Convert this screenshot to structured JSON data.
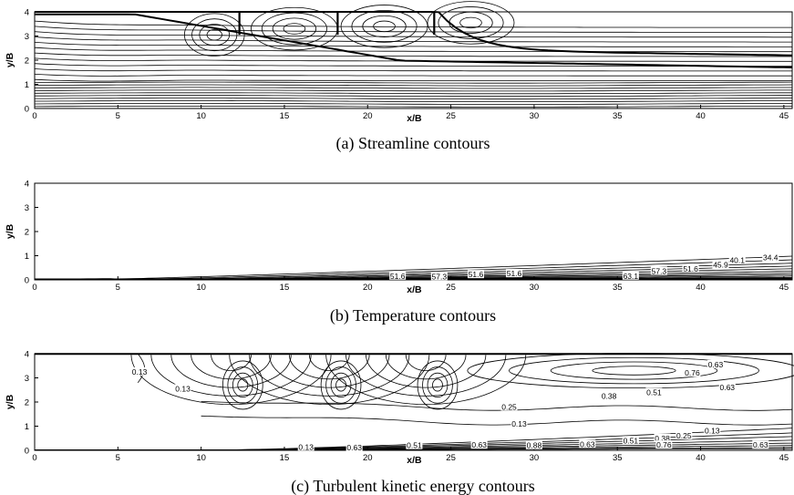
{
  "chart_data": [
    {
      "type": "contour",
      "caption": "(a)  Streamline contours",
      "xlabel": "x/B",
      "ylabel": "y/B",
      "xlim": [
        0,
        45.5
      ],
      "ylim": [
        0,
        4
      ],
      "xticks": [
        0,
        5,
        10,
        15,
        20,
        25,
        30,
        35,
        40,
        45
      ],
      "yticks": [
        0,
        1,
        2,
        3,
        4
      ],
      "grid": false,
      "contour_labels": [],
      "vortex_centers": [
        {
          "x": 10.8,
          "y": 3.05
        },
        {
          "x": 15.6,
          "y": 3.3
        },
        {
          "x": 21.0,
          "y": 3.4
        },
        {
          "x": 26.2,
          "y": 3.55
        }
      ],
      "vertical_walls_x": [
        12.3,
        18.2,
        24.0
      ]
    },
    {
      "type": "contour",
      "caption": "(b)  Temperature contours",
      "xlabel": "x/B",
      "ylabel": "y/B",
      "xlim": [
        0,
        45.5
      ],
      "ylim": [
        0,
        4
      ],
      "xticks": [
        0,
        5,
        10,
        15,
        20,
        25,
        30,
        35,
        40,
        45
      ],
      "yticks": [
        0,
        1,
        2,
        3,
        4
      ],
      "grid": false,
      "contour_labels": [
        {
          "text": "51.6",
          "x": 21.8,
          "y": 0.16
        },
        {
          "text": "57.3",
          "x": 24.3,
          "y": 0.14
        },
        {
          "text": "51.6",
          "x": 26.5,
          "y": 0.22
        },
        {
          "text": "51.6",
          "x": 28.8,
          "y": 0.26
        },
        {
          "text": "63.1",
          "x": 35.8,
          "y": 0.16
        },
        {
          "text": "57.3",
          "x": 37.5,
          "y": 0.36
        },
        {
          "text": "51.6",
          "x": 39.4,
          "y": 0.46
        },
        {
          "text": "45.9",
          "x": 41.2,
          "y": 0.62
        },
        {
          "text": "40.1",
          "x": 42.2,
          "y": 0.82
        },
        {
          "text": "34.4",
          "x": 44.2,
          "y": 0.92
        }
      ]
    },
    {
      "type": "contour",
      "caption": "(c)  Turbulent kinetic energy contours",
      "xlabel": "x/B",
      "ylabel": "y/B",
      "xlim": [
        0,
        45.5
      ],
      "ylim": [
        0,
        4
      ],
      "xticks": [
        0,
        5,
        10,
        15,
        20,
        25,
        30,
        35,
        40,
        45
      ],
      "yticks": [
        0,
        1,
        2,
        3,
        4
      ],
      "grid": false,
      "contour_labels": [
        {
          "text": "0.13",
          "x": 6.3,
          "y": 3.25
        },
        {
          "text": "0.13",
          "x": 8.9,
          "y": 2.55
        },
        {
          "text": "0.76",
          "x": 39.5,
          "y": 3.2
        },
        {
          "text": "0.63",
          "x": 40.9,
          "y": 3.55
        },
        {
          "text": "0.63",
          "x": 41.6,
          "y": 2.6
        },
        {
          "text": "0.51",
          "x": 37.2,
          "y": 2.4
        },
        {
          "text": "0.38",
          "x": 34.5,
          "y": 2.25
        },
        {
          "text": "0.25",
          "x": 28.5,
          "y": 1.8
        },
        {
          "text": "0.13",
          "x": 29.1,
          "y": 1.1
        },
        {
          "text": "0.13",
          "x": 40.7,
          "y": 0.82
        },
        {
          "text": "0.25",
          "x": 39.0,
          "y": 0.6
        },
        {
          "text": "0.38",
          "x": 37.7,
          "y": 0.5
        },
        {
          "text": "0.51",
          "x": 35.8,
          "y": 0.4
        },
        {
          "text": "0.76",
          "x": 37.8,
          "y": 0.22
        },
        {
          "text": "0.63",
          "x": 33.2,
          "y": 0.25
        },
        {
          "text": "0.63",
          "x": 43.6,
          "y": 0.22
        },
        {
          "text": "0.13",
          "x": 16.3,
          "y": 0.14
        },
        {
          "text": "0.63",
          "x": 19.2,
          "y": 0.12
        },
        {
          "text": "0.51",
          "x": 22.8,
          "y": 0.2
        },
        {
          "text": "0.63",
          "x": 26.7,
          "y": 0.22
        },
        {
          "text": "0.88",
          "x": 30.0,
          "y": 0.2
        }
      ]
    }
  ]
}
